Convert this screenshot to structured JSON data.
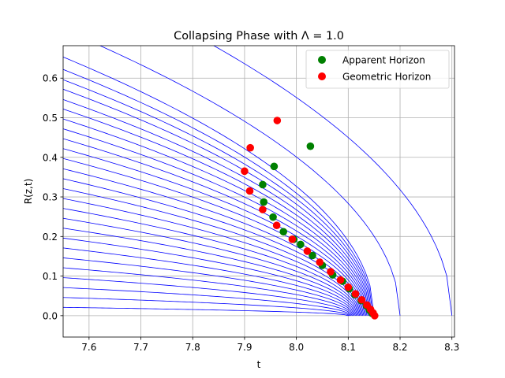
{
  "chart_data": {
    "type": "scatter",
    "title": "Collapsing Phase with Λ = 1.0",
    "xlabel": "t",
    "ylabel": "R(z,t)",
    "xlim": [
      7.55,
      8.305
    ],
    "ylim": [
      -0.054,
      0.682
    ],
    "xticks": [
      7.6,
      7.7,
      7.8,
      7.9,
      8.0,
      8.1,
      8.2,
      8.3
    ],
    "xtick_labels": [
      "7.6",
      "7.7",
      "7.8",
      "7.9",
      "8.0",
      "8.1",
      "8.2",
      "8.3"
    ],
    "yticks": [
      0.0,
      0.1,
      0.2,
      0.3,
      0.4,
      0.5,
      0.6
    ],
    "ytick_labels": [
      "0.0",
      "0.1",
      "0.2",
      "0.3",
      "0.4",
      "0.5",
      "0.6"
    ],
    "grid": true,
    "legend_position": "upper right",
    "curve_color": "#0000ff",
    "curves": [
      {
        "t_c": 8.3,
        "R0": 0.9,
        "t0": 7.5
      },
      {
        "t_c": 8.2,
        "R0": 0.75,
        "t0": 7.5
      },
      {
        "t_c": 8.15,
        "R0": 0.68,
        "t0": 7.5
      },
      {
        "t_c": 8.148,
        "R0": 0.622,
        "t0": 7.55
      },
      {
        "t_c": 8.146,
        "R0": 0.596,
        "t0": 7.55
      },
      {
        "t_c": 8.144,
        "R0": 0.572,
        "t0": 7.55
      },
      {
        "t_c": 8.142,
        "R0": 0.546,
        "t0": 7.55
      },
      {
        "t_c": 8.14,
        "R0": 0.522,
        "t0": 7.55
      },
      {
        "t_c": 8.138,
        "R0": 0.497,
        "t0": 7.55
      },
      {
        "t_c": 8.136,
        "R0": 0.472,
        "t0": 7.55
      },
      {
        "t_c": 8.134,
        "R0": 0.447,
        "t0": 7.55
      },
      {
        "t_c": 8.132,
        "R0": 0.422,
        "t0": 7.55
      },
      {
        "t_c": 8.13,
        "R0": 0.397,
        "t0": 7.55
      },
      {
        "t_c": 8.128,
        "R0": 0.371,
        "t0": 7.55
      },
      {
        "t_c": 8.126,
        "R0": 0.346,
        "t0": 7.55
      },
      {
        "t_c": 8.124,
        "R0": 0.321,
        "t0": 7.55
      },
      {
        "t_c": 8.122,
        "R0": 0.296,
        "t0": 7.55
      },
      {
        "t_c": 8.12,
        "R0": 0.271,
        "t0": 7.55
      },
      {
        "t_c": 8.118,
        "R0": 0.246,
        "t0": 7.55
      },
      {
        "t_c": 8.116,
        "R0": 0.221,
        "t0": 7.55
      },
      {
        "t_c": 8.114,
        "R0": 0.196,
        "t0": 7.55
      },
      {
        "t_c": 8.112,
        "R0": 0.171,
        "t0": 7.55
      },
      {
        "t_c": 8.11,
        "R0": 0.146,
        "t0": 7.55
      },
      {
        "t_c": 8.108,
        "R0": 0.121,
        "t0": 7.55
      },
      {
        "t_c": 8.106,
        "R0": 0.096,
        "t0": 7.55
      },
      {
        "t_c": 8.104,
        "R0": 0.071,
        "t0": 7.55
      },
      {
        "t_c": 8.102,
        "R0": 0.046,
        "t0": 7.55
      },
      {
        "t_c": 8.1,
        "R0": 0.021,
        "t0": 7.55
      }
    ],
    "series": [
      {
        "name": "Apparent Horizon",
        "color": "#008000",
        "points": [
          {
            "x": 8.027,
            "y": 0.428
          },
          {
            "x": 7.957,
            "y": 0.377
          },
          {
            "x": 7.935,
            "y": 0.331
          },
          {
            "x": 7.937,
            "y": 0.287
          },
          {
            "x": 7.955,
            "y": 0.249
          },
          {
            "x": 7.975,
            "y": 0.212
          },
          {
            "x": 7.995,
            "y": 0.193
          },
          {
            "x": 8.008,
            "y": 0.18
          },
          {
            "x": 8.031,
            "y": 0.152
          },
          {
            "x": 8.05,
            "y": 0.127
          },
          {
            "x": 8.07,
            "y": 0.103
          },
          {
            "x": 8.089,
            "y": 0.087
          },
          {
            "x": 8.102,
            "y": 0.068
          },
          {
            "x": 8.113,
            "y": 0.053
          },
          {
            "x": 8.125,
            "y": 0.038
          },
          {
            "x": 8.135,
            "y": 0.025
          },
          {
            "x": 8.141,
            "y": 0.014
          },
          {
            "x": 8.146,
            "y": 0.006
          }
        ]
      },
      {
        "name": "Geometric Horizon",
        "color": "#ff0000",
        "points": [
          {
            "x": 7.963,
            "y": 0.493
          },
          {
            "x": 7.911,
            "y": 0.424
          },
          {
            "x": 7.9,
            "y": 0.365
          },
          {
            "x": 7.91,
            "y": 0.315
          },
          {
            "x": 7.935,
            "y": 0.268
          },
          {
            "x": 7.962,
            "y": 0.228
          },
          {
            "x": 7.992,
            "y": 0.193
          },
          {
            "x": 8.021,
            "y": 0.163
          },
          {
            "x": 8.045,
            "y": 0.135
          },
          {
            "x": 8.066,
            "y": 0.111
          },
          {
            "x": 8.085,
            "y": 0.09
          },
          {
            "x": 8.1,
            "y": 0.072
          },
          {
            "x": 8.114,
            "y": 0.055
          },
          {
            "x": 8.126,
            "y": 0.04
          },
          {
            "x": 8.136,
            "y": 0.027
          },
          {
            "x": 8.143,
            "y": 0.016
          },
          {
            "x": 8.148,
            "y": 0.007
          },
          {
            "x": 8.151,
            "y": 0.0
          }
        ]
      }
    ]
  }
}
